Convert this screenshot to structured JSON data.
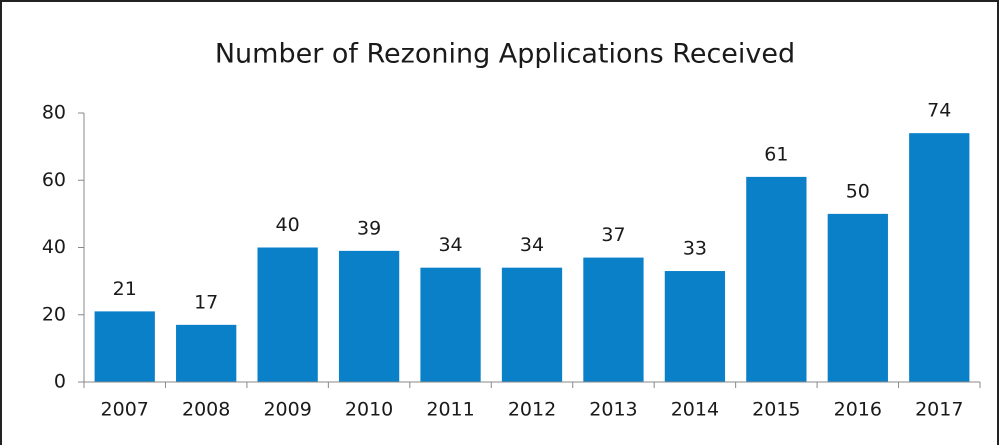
{
  "chart_data": {
    "type": "bar",
    "title": "Number of Rezoning Applications Received",
    "categories": [
      "2007",
      "2008",
      "2009",
      "2010",
      "2011",
      "2012",
      "2013",
      "2014",
      "2015",
      "2016",
      "2017"
    ],
    "values": [
      21,
      17,
      40,
      39,
      34,
      34,
      37,
      33,
      61,
      50,
      74
    ],
    "color": "#0a80c8",
    "ylim": [
      0,
      80
    ],
    "yticks": [
      0,
      20,
      40,
      60,
      80
    ],
    "grid": false
  }
}
